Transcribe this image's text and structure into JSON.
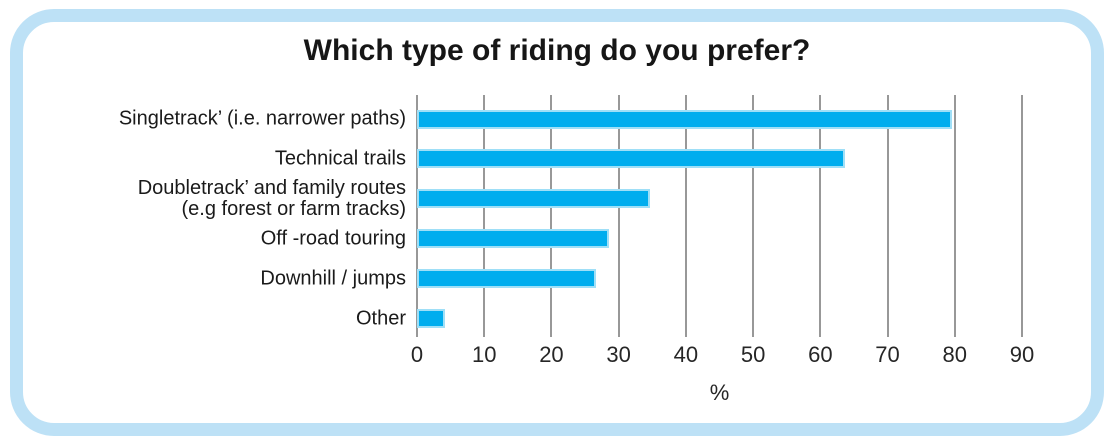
{
  "title": "Which type of riding do you prefer?",
  "chart_data": {
    "type": "bar",
    "orientation": "horizontal",
    "title": "Which type of riding do you prefer?",
    "categories": [
      "Singletrack’ (i.e. narrower paths)",
      "Technical trails",
      "Doubletrack’ and family routes\n(e.g forest or farm tracks)",
      "Off -road touring",
      "Downhill / jumps",
      "Other"
    ],
    "values": [
      79,
      63,
      34,
      28,
      26,
      3.5
    ],
    "xlabel": "%",
    "xlim": [
      0,
      90
    ],
    "xticks": [
      0,
      10,
      20,
      30,
      40,
      50,
      60,
      70,
      80,
      90
    ],
    "legend": "none",
    "grid": true
  },
  "colors": {
    "bar": "#00ADEE",
    "bar_edge": "#9FDFF7",
    "gridline": "#989898",
    "frame_border": "#BDE1F6",
    "text": "#1C1C1C",
    "background": "#FFFFFF"
  }
}
